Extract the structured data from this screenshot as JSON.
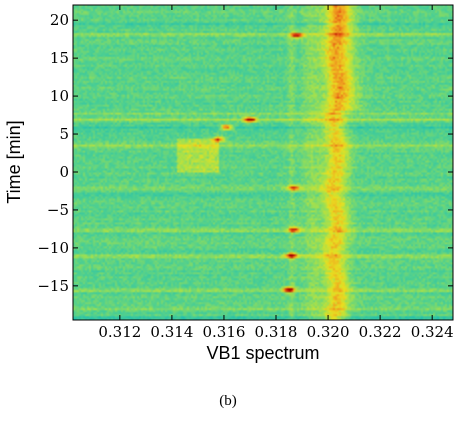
{
  "chart_data": {
    "type": "heatmap",
    "title": "",
    "xlabel": "VB1 spectrum",
    "ylabel": "Time [min]",
    "xlim": [
      0.3102,
      0.3248
    ],
    "ylim": [
      -19.5,
      22
    ],
    "x_ticks": [
      "0.312",
      "0.314",
      "0.316",
      "0.318",
      "0.320",
      "0.322",
      "0.324"
    ],
    "x_tick_values": [
      0.312,
      0.314,
      0.316,
      0.318,
      0.32,
      0.322,
      0.324
    ],
    "y_ticks": [
      "−15",
      "−10",
      "−5",
      "0",
      "5",
      "10",
      "15",
      "20"
    ],
    "y_tick_values": [
      -15,
      -10,
      -5,
      0,
      5,
      10,
      15,
      20
    ],
    "colormap": [
      "#00a8c8",
      "#20c0b0",
      "#50d090",
      "#a0e050",
      "#e8e020",
      "#f0a020",
      "#e04010",
      "#a00000"
    ],
    "features": {
      "main_line_x": 0.3203,
      "main_line_level": 0.62,
      "upper_drift_x": 0.3208,
      "upper_drift_level": 0.55,
      "warm_ridge_x": 0.3194,
      "secondary_line_x": 0.3186,
      "background_level": 0.3,
      "hot_spots": [
        {
          "x": 0.3188,
          "y": 18.0,
          "level": 0.95
        },
        {
          "x": 0.317,
          "y": 6.9,
          "level": 1.0
        },
        {
          "x": 0.3161,
          "y": 5.9,
          "level": 0.9
        },
        {
          "x": 0.3158,
          "y": 4.3,
          "level": 0.8
        },
        {
          "x": 0.3187,
          "y": -2.1,
          "level": 0.8
        },
        {
          "x": 0.3187,
          "y": -7.6,
          "level": 0.85
        },
        {
          "x": 0.3186,
          "y": -11.0,
          "level": 0.95
        },
        {
          "x": 0.3185,
          "y": -15.5,
          "level": 1.0
        }
      ],
      "warm_blob": {
        "x_range": [
          0.3142,
          0.3158
        ],
        "y_range": [
          0.0,
          4.5
        ],
        "level": 0.5
      },
      "horizontal_bands": [
        {
          "y": 19.5,
          "delta": -0.1
        },
        {
          "y": 18.1,
          "delta": 0.15
        },
        {
          "y": 7.7,
          "delta": 0.1
        },
        {
          "y": 6.9,
          "delta": 0.12
        },
        {
          "y": 5.8,
          "delta": -0.1
        },
        {
          "y": 3.5,
          "delta": 0.12
        },
        {
          "y": -2.2,
          "delta": 0.1
        },
        {
          "y": -2.9,
          "delta": -0.1
        },
        {
          "y": -7.7,
          "delta": 0.15
        },
        {
          "y": -11.1,
          "delta": 0.15
        },
        {
          "y": -15.6,
          "delta": 0.15
        },
        {
          "y": -18.0,
          "delta": 0.1
        },
        {
          "y": -19.2,
          "delta": -0.12
        }
      ]
    }
  },
  "caption": "(b)"
}
